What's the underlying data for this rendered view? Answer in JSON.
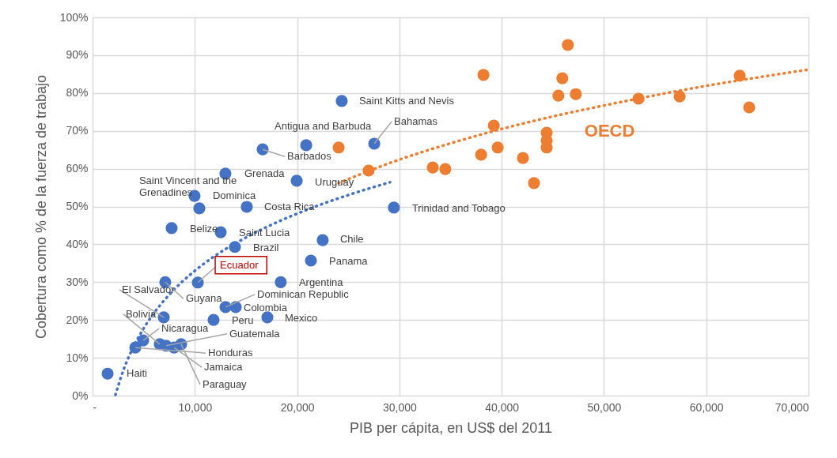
{
  "chart_data": {
    "type": "scatter",
    "xlabel": "PIB per cápita, en US$ del 2011",
    "ylabel": "Cobertura como % de la fuerza de trabajo",
    "xlim": [
      0,
      70000
    ],
    "xticks": [
      {
        "value": 0,
        "label": "-"
      },
      {
        "value": 10000,
        "label": "10,000"
      },
      {
        "value": 20000,
        "label": "20,000"
      },
      {
        "value": 30000,
        "label": "30,000"
      },
      {
        "value": 40000,
        "label": "40,000"
      },
      {
        "value": 50000,
        "label": "50,000"
      },
      {
        "value": 60000,
        "label": "60,000"
      },
      {
        "value": 70000,
        "label": "70,000"
      }
    ],
    "ylim": [
      0,
      100
    ],
    "yticks": [
      {
        "value": 0,
        "label": "0%"
      },
      {
        "value": 10,
        "label": "10%"
      },
      {
        "value": 20,
        "label": "20%"
      },
      {
        "value": 30,
        "label": "30%"
      },
      {
        "value": 40,
        "label": "40%"
      },
      {
        "value": 50,
        "label": "50%"
      },
      {
        "value": 60,
        "label": "60%"
      },
      {
        "value": 70,
        "label": "70%"
      },
      {
        "value": 80,
        "label": "80%"
      },
      {
        "value": 90,
        "label": "90%"
      },
      {
        "value": 100,
        "label": "100%"
      }
    ],
    "grid": true,
    "marker": "circle",
    "series": [
      {
        "color": "#4472c4",
        "x": [
          1470,
          4180,
          4950,
          6570,
          7190,
          7970,
          8660,
          6960,
          7110,
          10290,
          13920,
          13000,
          14000,
          11830,
          18400,
          17090,
          21350,
          22500,
          24360,
          20890,
          27540,
          16630,
          12990,
          19960,
          9970,
          10440,
          15080,
          29460,
          7730,
          12530
        ],
        "values": [
          5.8,
          12.7,
          14.6,
          13.6,
          13.2,
          12.7,
          13.6,
          20.7,
          30.0,
          29.9,
          39.3,
          23.4,
          23.4,
          20.0,
          30.0,
          20.7,
          35.7,
          41.1,
          77.9,
          66.2,
          66.6,
          65.1,
          58.7,
          56.8,
          52.8,
          49.5,
          49.9,
          49.7,
          44.3,
          43.2
        ]
      },
      {
        "name": "OECD",
        "color": "#ed7d31",
        "x": [
          24060,
          26990,
          33260,
          34490,
          38220,
          37990,
          39230,
          39610,
          42080,
          43160,
          44400,
          44400,
          44400,
          46470,
          45930,
          45540,
          47250,
          53380,
          57400,
          63270,
          64200
        ],
        "values": [
          65.6,
          59.5,
          60.3,
          59.9,
          84.8,
          63.7,
          71.4,
          65.6,
          62.8,
          56.2,
          69.5,
          67.4,
          65.6,
          92.7,
          83.9,
          79.3,
          79.7,
          78.5,
          79.1,
          84.6,
          76.2
        ]
      },
      {
        "type": "line",
        "line_style": "dotted",
        "marker": "none",
        "color": "#4472c4",
        "x": [
          2240,
          3000,
          4000,
          5000,
          6000,
          8000,
          10000,
          12000,
          15000,
          18000,
          22000,
          26000,
          29080
        ],
        "values": [
          0.2,
          6.6,
          12.9,
          17.8,
          21.8,
          28.1,
          33.0,
          37.0,
          41.8,
          45.8,
          50.2,
          53.9,
          56.4
        ]
      },
      {
        "type": "line",
        "line_style": "dotted",
        "marker": "none",
        "color": "#ed7d31",
        "x": [
          24060,
          30000,
          35000,
          40000,
          45000,
          50000,
          55000,
          60000,
          65000,
          70000
        ],
        "values": [
          56.2,
          62.4,
          66.7,
          70.5,
          73.8,
          76.7,
          79.4,
          81.9,
          84.1,
          86.2
        ]
      }
    ],
    "annotations": [
      {
        "text": "Haiti",
        "x": 1470,
        "y": 5.8
      },
      {
        "text": "Saint Kitts and Nevis",
        "x": 24360,
        "y": 77.9
      },
      {
        "text": "Antigua and Barbuda",
        "x": 20890,
        "y": 66.2
      },
      {
        "text": "Bahamas",
        "x": 27540,
        "y": 66.6
      },
      {
        "text": "Barbados",
        "x": 16630,
        "y": 65.1
      },
      {
        "text": "Saint Vincent and the\nGrenadines",
        "x": 9970,
        "y": 52.8
      },
      {
        "text": "Grenada",
        "x": 12990,
        "y": 58.7
      },
      {
        "text": "Uruguay",
        "x": 19960,
        "y": 56.8
      },
      {
        "text": "Dominica",
        "x": 10440,
        "y": 49.5
      },
      {
        "text": "Costa Rica",
        "x": 15080,
        "y": 49.9
      },
      {
        "text": "Trinidad and Tobago",
        "x": 29460,
        "y": 49.7
      },
      {
        "text": "Belize",
        "x": 7730,
        "y": 44.3
      },
      {
        "text": "Saint Lucia",
        "x": 12530,
        "y": 43.2
      },
      {
        "text": "Brazil",
        "x": 13920,
        "y": 39.3
      },
      {
        "text": "Chile",
        "x": 22500,
        "y": 41.1
      },
      {
        "text": "Ecuador",
        "x": 10290,
        "y": 29.9
      },
      {
        "text": "Panama",
        "x": 21350,
        "y": 35.7
      },
      {
        "text": "El Salvador",
        "x": 6960,
        "y": 20.7
      },
      {
        "text": "Argentina",
        "x": 18400,
        "y": 30.0
      },
      {
        "text": "Guyana",
        "x": 7110,
        "y": 30.0
      },
      {
        "text": "Dominican Republic",
        "x": 13000,
        "y": 23.4
      },
      {
        "text": "Colombia",
        "x": 14000,
        "y": 23.4
      },
      {
        "text": "Bolivia",
        "x": 6570,
        "y": 13.6
      },
      {
        "text": "Peru",
        "x": 11830,
        "y": 20.0
      },
      {
        "text": "Mexico",
        "x": 17090,
        "y": 20.7
      },
      {
        "text": "Nicaragua",
        "x": 4950,
        "y": 14.6
      },
      {
        "text": "Guatemala",
        "x": 7190,
        "y": 13.2
      },
      {
        "text": "Honduras",
        "x": 4180,
        "y": 12.7
      },
      {
        "text": "Jamaica",
        "x": 7970,
        "y": 12.7
      },
      {
        "text": "Paraguay",
        "x": 8660,
        "y": 13.6
      }
    ]
  }
}
